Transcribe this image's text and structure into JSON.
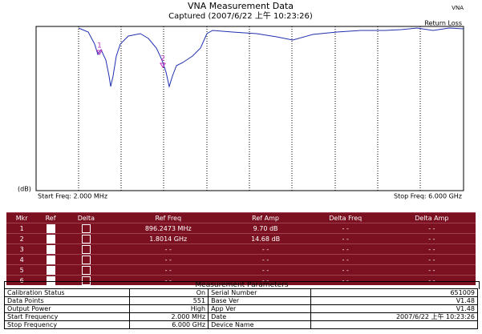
{
  "header": {
    "title": "VNA Measurement Data",
    "subtitle": "Captured  (2007/6/22 上午 10:23:26)",
    "corner": "VNA"
  },
  "plot": {
    "trace_label": "Return Loss",
    "y_unit": "(dB)",
    "start": "Start Freq: 2.000 MHz",
    "stop": "Stop Freq: 6.000 GHz",
    "markers": [
      "1",
      "2"
    ]
  },
  "markers_table": {
    "headers": [
      "Mkr",
      "Ref",
      "Delta",
      "Ref Freq",
      "Ref Amp",
      "Delta Freq",
      "Delta Amp"
    ],
    "rows": [
      [
        "1",
        "896.2473 MHz",
        "9.70 dB",
        "- -",
        "- -"
      ],
      [
        "2",
        "1.8014 GHz",
        "14.68 dB",
        "- -",
        "- -"
      ],
      [
        "3",
        "- -",
        "- -",
        "- -",
        "- -"
      ],
      [
        "4",
        "- -",
        "- -",
        "- -",
        "- -"
      ],
      [
        "5",
        "- -",
        "- -",
        "- -",
        "- -"
      ],
      [
        "6",
        "- -",
        "- -",
        "- -",
        "- -"
      ]
    ]
  },
  "params": {
    "title": "Measurement Parameters",
    "rows": [
      [
        "Calibration Status",
        "On",
        "Serial Number",
        "651009"
      ],
      [
        "Data Points",
        "551",
        "Base Ver",
        "V1.48"
      ],
      [
        "Output Power",
        "High",
        "App Ver",
        "V1.48"
      ],
      [
        "Start Frequency",
        "2.000 MHz",
        "Date",
        "2007/6/22 上午 10:23:26"
      ],
      [
        "Stop Frequency",
        "6.000 GHz",
        "Device Name"
      ]
    ]
  }
}
